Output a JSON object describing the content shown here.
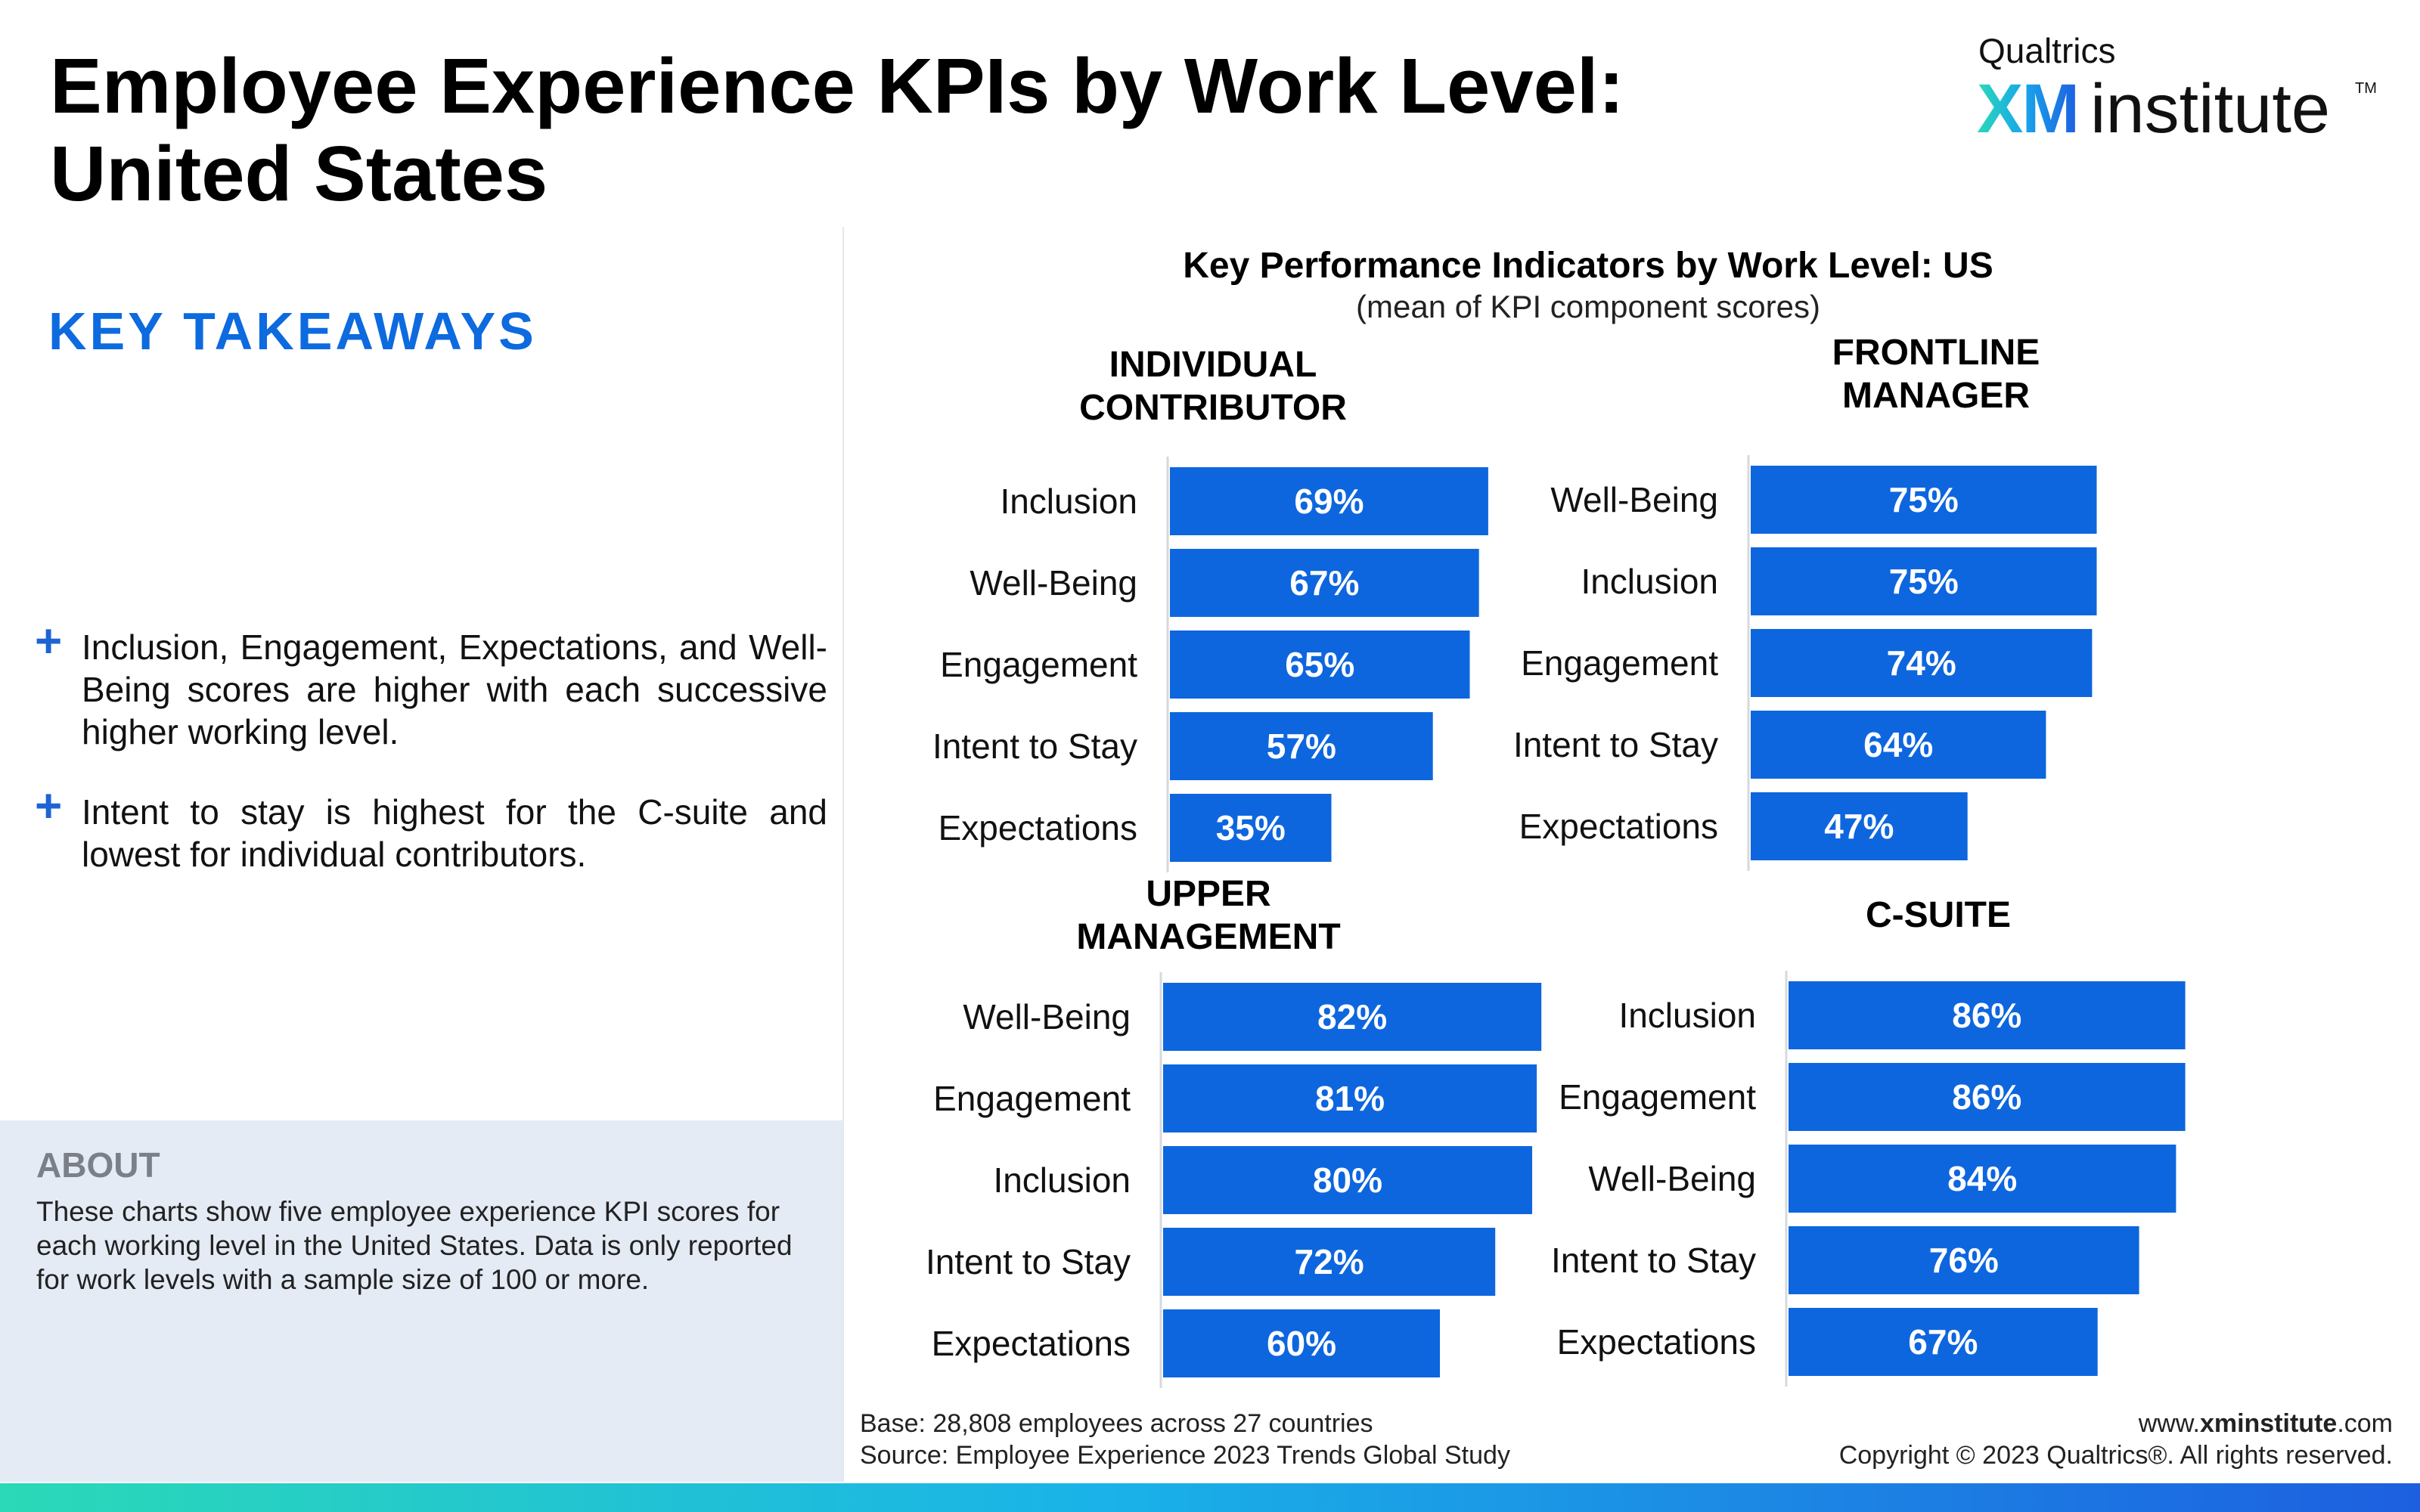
{
  "header": {
    "title_line1": "Employee Experience KPIs by Work Level:",
    "title_line2": "United States",
    "logo_brand": "Qualtrics",
    "logo_xm": "XM",
    "logo_institute": "institute",
    "logo_tm": "TM"
  },
  "takeaways": {
    "heading": "KEY TAKEAWAYS",
    "bullet_icon": "plus-icon",
    "items": [
      "Inclusion, Engagement, Expectations, and Well-Being scores are higher with each successive higher working level.",
      "Intent to stay is highest for the C-suite and lowest for individual contributors."
    ]
  },
  "about": {
    "heading": "ABOUT",
    "body": "These charts show five employee experience KPI scores for each working level in the United States. Data is only reported for work levels with a sample size of 100 or more."
  },
  "footer": {
    "base": "Base: 28,808 employees across 27 countries",
    "source": "Source: Employee Experience 2023 Trends Global Study",
    "website_prefix": "www.",
    "website_bold": "xminstitute",
    "website_suffix": ".com",
    "copyright": "Copyright © 2023 Qualtrics®. All rights reserved."
  },
  "colors": {
    "bar": "#0d66de",
    "accent_blue": "#0d6adf",
    "about_bg": "#e4ebf4"
  },
  "chart_data": {
    "type": "bar",
    "orientation": "horizontal",
    "title": "Key Performance Indicators by Work Level: US",
    "subtitle": "(mean of KPI component scores)",
    "xlim": [
      0,
      100
    ],
    "grid": false,
    "panels": [
      {
        "title_lines": [
          "INDIVIDUAL",
          "CONTRIBUTOR"
        ],
        "categories": [
          "Inclusion",
          "Well-Being",
          "Engagement",
          "Intent to Stay",
          "Expectations"
        ],
        "values": [
          69,
          67,
          65,
          57,
          35
        ],
        "labels": [
          "69%",
          "67%",
          "65%",
          "57%",
          "35%"
        ]
      },
      {
        "title_lines": [
          "FRONTLINE",
          "MANAGER"
        ],
        "categories": [
          "Well-Being",
          "Inclusion",
          "Engagement",
          "Intent to Stay",
          "Expectations"
        ],
        "values": [
          75,
          75,
          74,
          64,
          47
        ],
        "labels": [
          "75%",
          "75%",
          "74%",
          "64%",
          "47%"
        ]
      },
      {
        "title_lines": [
          "UPPER",
          "MANAGEMENT"
        ],
        "categories": [
          "Well-Being",
          "Engagement",
          "Inclusion",
          "Intent to Stay",
          "Expectations"
        ],
        "values": [
          82,
          81,
          80,
          72,
          60
        ],
        "labels": [
          "82%",
          "81%",
          "80%",
          "72%",
          "60%"
        ]
      },
      {
        "title_lines": [
          "C-SUITE"
        ],
        "categories": [
          "Inclusion",
          "Engagement",
          "Well-Being",
          "Intent to Stay",
          "Expectations"
        ],
        "values": [
          86,
          86,
          84,
          76,
          67
        ],
        "labels": [
          "86%",
          "86%",
          "84%",
          "76%",
          "67%"
        ]
      }
    ]
  }
}
